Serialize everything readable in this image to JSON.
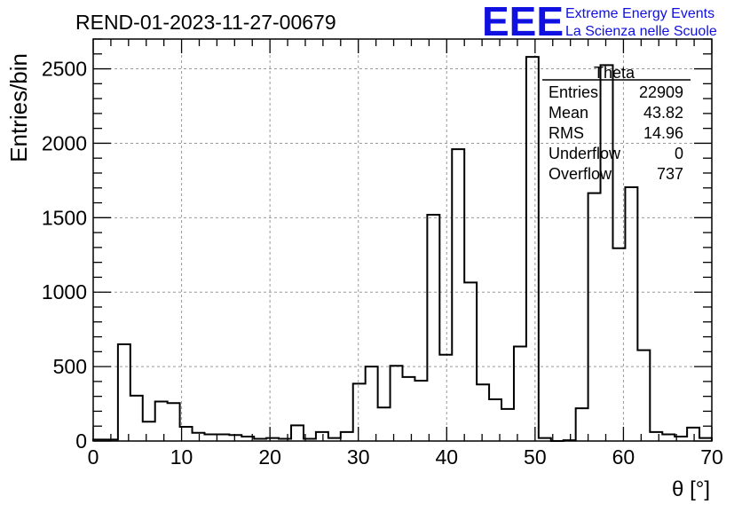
{
  "header": {
    "run_title": "REND-01-2023-11-27-00679",
    "logo_text": "EEE",
    "logo_line1": "Extreme Energy Events",
    "logo_line2": "La Scienza nelle Scuole",
    "logo_color": "#1010e0"
  },
  "stats_box": {
    "title": "Theta",
    "rows": [
      {
        "label": "Entries",
        "value": "22909"
      },
      {
        "label": "Mean",
        "value": "43.82"
      },
      {
        "label": "RMS",
        "value": "14.96"
      },
      {
        "label": "Underflow",
        "value": "0"
      },
      {
        "label": "Overflow",
        "value": "737"
      }
    ]
  },
  "chart_data": {
    "type": "bar",
    "subtype": "histogram",
    "title": "REND-01-2023-11-27-00679",
    "xlabel": "θ [°]",
    "ylabel": "Entries/bin",
    "xlim": [
      0,
      70
    ],
    "ylim": [
      0,
      2700
    ],
    "bin_width": 1.4,
    "x_ticks": [
      "0",
      "10",
      "20",
      "30",
      "40",
      "50",
      "60",
      "70"
    ],
    "y_ticks": [
      "0",
      "500",
      "1000",
      "1500",
      "2000",
      "2500"
    ],
    "grid": true,
    "line_color": "#000000",
    "values": [
      10,
      10,
      650,
      305,
      130,
      265,
      255,
      95,
      55,
      45,
      45,
      40,
      30,
      15,
      20,
      15,
      105,
      15,
      60,
      20,
      60,
      385,
      500,
      225,
      505,
      430,
      405,
      1520,
      580,
      1960,
      1065,
      380,
      280,
      215,
      635,
      2580,
      20,
      0,
      5,
      220,
      1665,
      2525,
      1295,
      1705,
      610,
      60,
      45,
      30,
      90,
      20
    ]
  }
}
